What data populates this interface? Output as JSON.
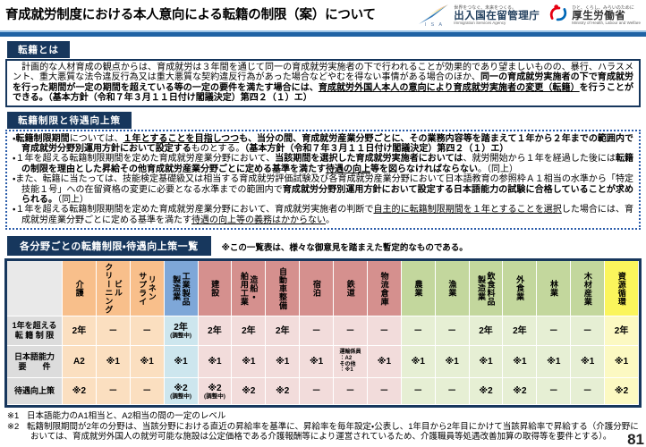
{
  "header": {
    "title": "育成就労制度における本人意向による転籍の制限（案）について",
    "isa_logo": {
      "acronym": "I S A",
      "tagline": "世界をつなぐ、未来をつくる。",
      "name": "出入国在留管理庁",
      "name_en": "Immigration Services Agency"
    },
    "mhlw_logo": {
      "tagline": "ひと、くらし、みらいのために",
      "name": "厚生労働省",
      "name_en": "Ministry of Health, Labour and Welfare"
    }
  },
  "section_definition": {
    "heading": "転籍とは",
    "paragraph": [
      {
        "t": "　計画的な人材育成の観点からは、育成就労は３年間を通じて同一の育成就労実施者の下で行われることが効果的であり望ましいものの、暴行、ハラスメント、重大悪質な法令違反行為又は重大悪質な契約違反行為があった場合などやむを得ない事情がある場合のほか、"
      },
      {
        "t": "同一の育成就労実施者の下で育成就労を行った期間が一定の期間を超えている等の一定の要件を満たす場合には、",
        "b": true
      },
      {
        "t": "育成就労外国人本人の意向により育成就労実施者の変更（転籍）",
        "b": true,
        "u": true
      },
      {
        "t": "を行うことができる。（基本方針（令和７年３月１１日付け閣議決定）第四２（１）エ）",
        "b": true
      }
    ]
  },
  "section_restriction": {
    "heading": "転籍制限と待遇向上策",
    "bullets": [
      [
        {
          "t": "・"
        },
        {
          "t": "転籍制限期間",
          "b": true
        },
        {
          "t": "については、"
        },
        {
          "t": "１年とすることを目指しつつ",
          "b": true,
          "u": true
        },
        {
          "t": "も、当分の間、育成就労産業分野ごとに、その業務内容等を踏まえて１年から２年までの範囲内で育成就労分野別運用方針において設定する",
          "b": true
        },
        {
          "t": "ものとする。"
        },
        {
          "t": "（基本方針（令和７年３月１１日付け閣議決定）第四２（１）エ）",
          "b": true
        }
      ],
      [
        {
          "t": "・１年を超える転籍制限期間を定めた育成就労産業分野において、"
        },
        {
          "t": "当該期間を選択した育成就労実施者においては",
          "b": true
        },
        {
          "t": "、就労開始から１年を経過した後には"
        },
        {
          "t": "転籍の制限を理由とした昇給その他育成就労産業分野ごとに定める基準を満たす",
          "b": true
        },
        {
          "t": "待遇の向上",
          "b": true,
          "u": true
        },
        {
          "t": "等を図らなければならない",
          "b": true
        },
        {
          "t": "。（同上）"
        }
      ],
      [
        {
          "t": "・また、転籍に当たっては、技能検定基礎級又は相当する育成就労評価試験及び各育成就労産業分野において日本語教育の参照枠Ａ１相当の水準から「特定技能１号」への在留資格の変更に必要となる水準までの範囲内で"
        },
        {
          "t": "育成就労分野別運用方針において設定する日本語能力の試験に合格していることが求められる。",
          "b": true
        },
        {
          "t": "（同上）"
        }
      ],
      [
        {
          "t": "・１年を超える転籍制限期間を定めた育成就労産業分野において、育成就労実施者の判断で"
        },
        {
          "t": "自主的に転籍制限期間を１年とすることを選択",
          "u": true
        },
        {
          "t": "した場合には、育成就労産業分野ごとに定める基準を満たす"
        },
        {
          "t": "待遇の向上等の義務はかからない",
          "u": true
        },
        {
          "t": "。"
        }
      ]
    ]
  },
  "table_section": {
    "heading": "各分野ごとの転籍制限・待遇向上策一覧",
    "note": "※この一覧表は、様々な御意見を踏まえた暫定的なものである。",
    "row_labels": [
      "1年を超える\n転 籍 制 限",
      "日本語能力\n要　　件",
      "待遇向上策"
    ],
    "group_colors": {
      "label": {
        "head": "#e9e9e9",
        "cell": "#dcdcdc"
      },
      "orange": {
        "head": "#f8bf8b",
        "cell": "#fbdfc0"
      },
      "blue": {
        "head": "#7ea7d8",
        "cell": "#cde6ee"
      },
      "red": {
        "head": "#d5908e",
        "cell": "#f2dcdb"
      },
      "green": {
        "head": "#c3d79d",
        "cell": "#e6efd4"
      },
      "yellow": {
        "head": "#fbf55c",
        "cell": "#fcf9c2"
      }
    },
    "columns": [
      {
        "label": "介護",
        "group": "orange",
        "values": [
          "2年",
          "A2",
          "※2"
        ]
      },
      {
        "label": "ビル\nクリーニング",
        "group": "orange",
        "values": [
          "－",
          "※1",
          "－"
        ]
      },
      {
        "label": "リネン\nサプライ",
        "group": "orange",
        "values": [
          "－",
          "※1",
          "－"
        ]
      },
      {
        "label": "工業製品\n製造業",
        "group": "blue",
        "values": [
          {
            "v": "2年",
            "sub": "(調整中)"
          },
          "※1",
          {
            "v": "※2",
            "sub": "(調整中)"
          }
        ]
      },
      {
        "label": "建設",
        "group": "red",
        "values": [
          "2年",
          "※1",
          {
            "v": "※2",
            "sub": "(調整中)"
          }
        ]
      },
      {
        "label": "造船・\n舶用工業",
        "group": "red",
        "values": [
          "2年",
          "※1",
          "※2"
        ]
      },
      {
        "label": "自動車整備",
        "group": "red",
        "values": [
          "2年",
          "※1",
          "※2"
        ]
      },
      {
        "label": "宿泊",
        "group": "red",
        "values": [
          "－",
          "※1",
          "－"
        ]
      },
      {
        "label": "鉄道",
        "group": "red",
        "values": [
          "－",
          {
            "tiny": "運輸係員\n：A2\nその他\n：※1"
          },
          "－"
        ]
      },
      {
        "label": "物流倉庫",
        "group": "red",
        "values": [
          "－",
          "※1",
          "－"
        ]
      },
      {
        "label": "農業",
        "group": "green",
        "values": [
          "－",
          "※1",
          "－"
        ]
      },
      {
        "label": "漁業",
        "group": "green",
        "values": [
          "－",
          "※1",
          "－"
        ]
      },
      {
        "label": "飲食料品\n製造業",
        "group": "green",
        "values": [
          "2年",
          "※1",
          "※2"
        ]
      },
      {
        "label": "外食業",
        "group": "green",
        "values": [
          "2年",
          "※1",
          "※2"
        ]
      },
      {
        "label": "林業",
        "group": "green",
        "values": [
          "－",
          "※1",
          "－"
        ]
      },
      {
        "label": "木材産業",
        "group": "green",
        "values": [
          "－",
          "※1",
          "－"
        ]
      },
      {
        "label": "資源循環",
        "group": "yellow",
        "values": [
          "2年",
          "※1",
          "※2"
        ]
      }
    ]
  },
  "footnotes": [
    {
      "marker": "※1",
      "text": "日本語能力のA1相当と、A2相当の間の一定のレベル"
    },
    {
      "marker": "※2",
      "text": "転籍制限期間が2年の分野は、当該分野における直近の昇給率を基準に、昇給率を毎年設定・公表し、1年目から2年目にかけて当該昇給率で昇給する（介護分野においては、育成就労外国人の就労可能な施設は公定価格である介護報酬等により運営されているため、介護職員等処遇改善加算の取得等を要件とする）。"
    }
  ],
  "page_number": "81"
}
